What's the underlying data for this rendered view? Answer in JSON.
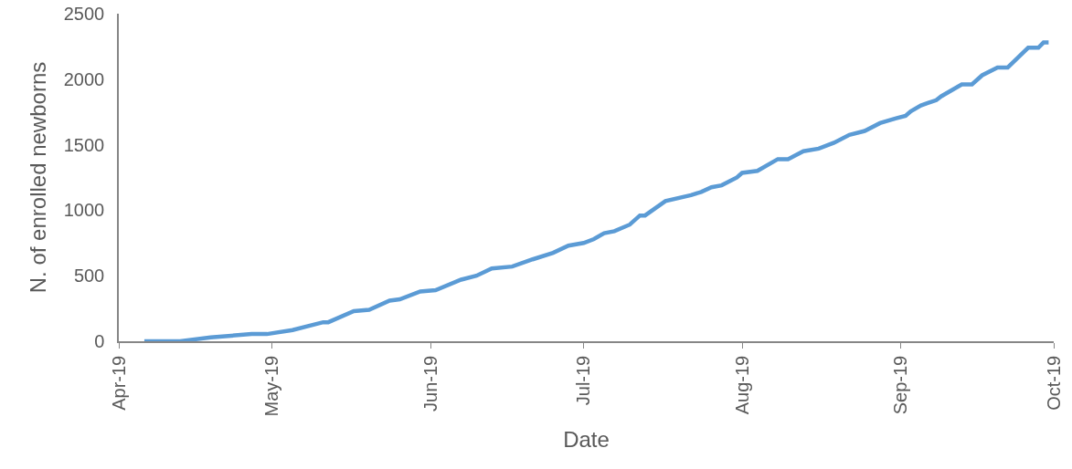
{
  "chart_data": {
    "type": "line",
    "xlabel": "Date",
    "ylabel": "N. of enrolled newborns",
    "grid": false,
    "marker": "none",
    "line_style": "solid",
    "x": [
      "2019-04-06",
      "2019-04-13",
      "2019-04-19",
      "2019-04-27",
      "2019-04-30",
      "2019-05-05",
      "2019-05-11",
      "2019-05-12",
      "2019-05-17",
      "2019-05-20",
      "2019-05-24",
      "2019-05-26",
      "2019-05-30",
      "2019-06-02",
      "2019-06-07",
      "2019-06-10",
      "2019-06-13",
      "2019-06-17",
      "2019-06-21",
      "2019-06-25",
      "2019-06-28",
      "2019-07-01",
      "2019-07-03",
      "2019-07-05",
      "2019-07-07",
      "2019-07-10",
      "2019-07-12",
      "2019-07-13",
      "2019-07-17",
      "2019-07-22",
      "2019-07-24",
      "2019-07-26",
      "2019-07-28",
      "2019-07-31",
      "2019-08-01",
      "2019-08-04",
      "2019-08-08",
      "2019-08-10",
      "2019-08-13",
      "2019-08-16",
      "2019-08-19",
      "2019-08-22",
      "2019-08-25",
      "2019-08-28",
      "2019-08-31",
      "2019-09-02",
      "2019-09-03",
      "2019-09-05",
      "2019-09-08",
      "2019-09-09",
      "2019-09-13",
      "2019-09-15",
      "2019-09-17",
      "2019-09-20",
      "2019-09-22",
      "2019-09-24",
      "2019-09-26",
      "2019-09-28",
      "2019-09-29",
      "2019-09-30"
    ],
    "series": [
      {
        "color": "#5b9bd5",
        "values": [
          0,
          0,
          30,
          55,
          55,
          85,
          145,
          145,
          230,
          240,
          310,
          320,
          380,
          390,
          470,
          500,
          555,
          570,
          625,
          675,
          730,
          750,
          780,
          825,
          840,
          890,
          960,
          960,
          1070,
          1115,
          1140,
          1175,
          1190,
          1250,
          1285,
          1300,
          1390,
          1390,
          1450,
          1470,
          1515,
          1575,
          1605,
          1665,
          1700,
          1720,
          1755,
          1800,
          1840,
          1870,
          1960,
          1960,
          2030,
          2090,
          2090,
          2165,
          2240,
          2240,
          2280,
          2280
        ]
      }
    ],
    "xlim": [
      "2019-04-01",
      "2019-10-01"
    ],
    "xticks": [
      {
        "value": "2019-04-01",
        "label": "Apr-19"
      },
      {
        "value": "2019-05-01",
        "label": "May-19"
      },
      {
        "value": "2019-06-01",
        "label": "Jun-19"
      },
      {
        "value": "2019-07-01",
        "label": "Jul-19"
      },
      {
        "value": "2019-08-01",
        "label": "Aug-19"
      },
      {
        "value": "2019-09-01",
        "label": "Sep-19"
      },
      {
        "value": "2019-10-01",
        "label": "Oct-19"
      }
    ],
    "ylim": [
      0,
      2500
    ],
    "yticks": [
      0,
      500,
      1000,
      1500,
      2000,
      2500
    ]
  }
}
